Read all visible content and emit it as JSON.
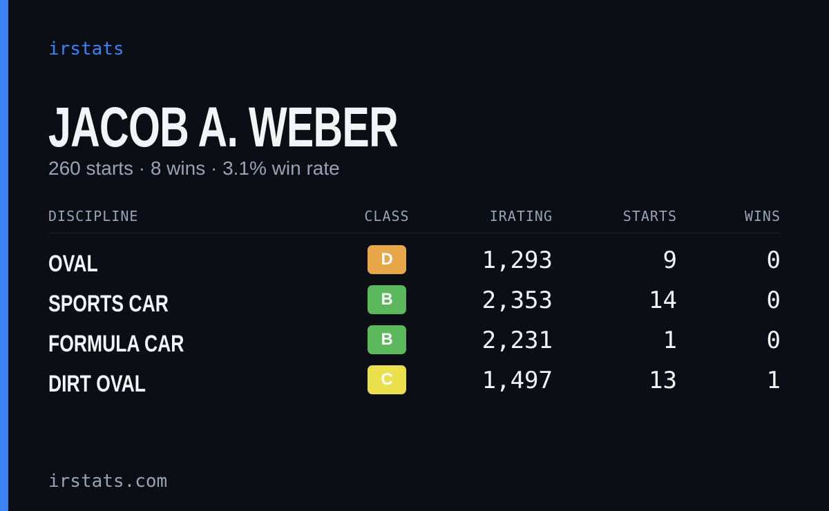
{
  "brand": "irstats",
  "name": "JACOB A. WEBER",
  "summary": "260 starts · 8 wins · 3.1% win rate",
  "table": {
    "headers": [
      "DISCIPLINE",
      "CLASS",
      "IRATING",
      "STARTS",
      "WINS"
    ],
    "rows": [
      {
        "discipline": "OVAL",
        "class": "D",
        "class_color": "#e8a84a",
        "irating": "1,293",
        "starts": "9",
        "wins": "0"
      },
      {
        "discipline": "SPORTS CAR",
        "class": "B",
        "class_color": "#5cb85c",
        "irating": "2,353",
        "starts": "14",
        "wins": "0"
      },
      {
        "discipline": "FORMULA CAR",
        "class": "B",
        "class_color": "#5cb85c",
        "irating": "2,231",
        "starts": "1",
        "wins": "0"
      },
      {
        "discipline": "DIRT OVAL",
        "class": "C",
        "class_color": "#ebe04e",
        "irating": "1,497",
        "starts": "13",
        "wins": "1"
      }
    ]
  },
  "footer": "irstats.com"
}
